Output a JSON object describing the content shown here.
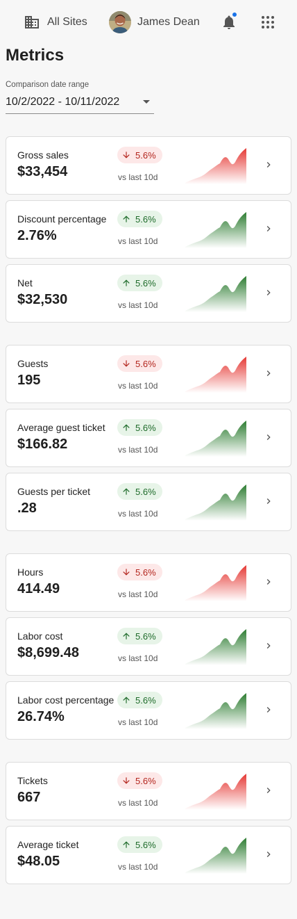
{
  "header": {
    "sites_label": "All Sites",
    "user_name": "James Dean"
  },
  "page": {
    "title": "Metrics",
    "date_range_label": "Comparison date range",
    "date_range_value": "10/2/2022 - 10/11/2022"
  },
  "colors": {
    "down": "#e53935",
    "up": "#2e7d32",
    "notification_dot": "#1a73e8"
  },
  "metrics": [
    {
      "name": "Gross sales",
      "value": "$33,454",
      "change": "5.6%",
      "trend": "down",
      "compare": "vs last 10d"
    },
    {
      "name": "Discount percentage",
      "value": "2.76%",
      "change": "5.6%",
      "trend": "up",
      "compare": "vs last 10d"
    },
    {
      "name": "Net",
      "value": "$32,530",
      "change": "5.6%",
      "trend": "up",
      "compare": "vs last 10d"
    },
    {
      "name": "Guests",
      "value": "195",
      "change": "5.6%",
      "trend": "down",
      "compare": "vs last 10d"
    },
    {
      "name": "Average guest ticket",
      "value": "$166.82",
      "change": "5.6%",
      "trend": "up",
      "compare": "vs last 10d"
    },
    {
      "name": "Guests per ticket",
      "value": ".28",
      "change": "5.6%",
      "trend": "up",
      "compare": "vs last 10d"
    },
    {
      "name": "Hours",
      "value": "414.49",
      "change": "5.6%",
      "trend": "down",
      "compare": "vs last 10d"
    },
    {
      "name": "Labor cost",
      "value": "$8,699.48",
      "change": "5.6%",
      "trend": "up",
      "compare": "vs last 10d"
    },
    {
      "name": "Labor cost percentage",
      "value": "26.74%",
      "change": "5.6%",
      "trend": "up",
      "compare": "vs last 10d"
    },
    {
      "name": "Tickets",
      "value": "667",
      "change": "5.6%",
      "trend": "down",
      "compare": "vs last 10d"
    },
    {
      "name": "Average ticket",
      "value": "$48.05",
      "change": "5.6%",
      "trend": "up",
      "compare": "vs last 10d"
    }
  ]
}
